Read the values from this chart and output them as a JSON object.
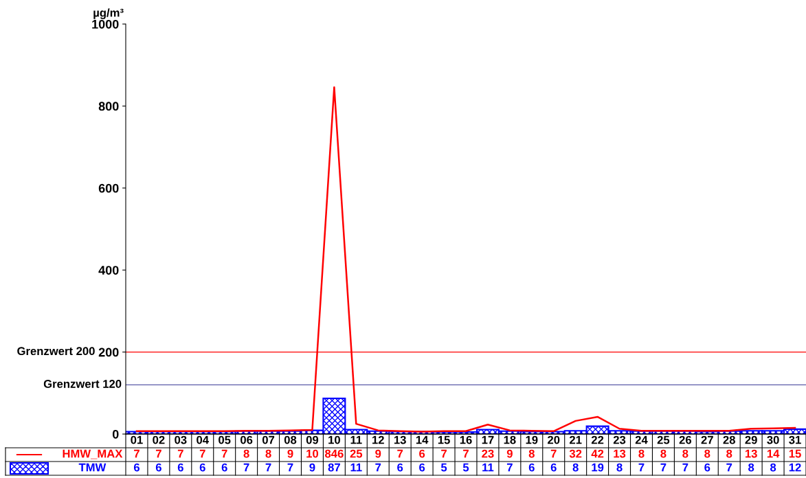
{
  "chart_data": {
    "type": "bar",
    "ylabel": "µg/m³",
    "categories": [
      "01",
      "02",
      "03",
      "04",
      "05",
      "06",
      "07",
      "08",
      "09",
      "10",
      "11",
      "12",
      "13",
      "14",
      "15",
      "16",
      "17",
      "18",
      "19",
      "20",
      "21",
      "22",
      "23",
      "24",
      "25",
      "26",
      "27",
      "28",
      "29",
      "30",
      "31"
    ],
    "series": [
      {
        "name": "HMW_MAX",
        "type": "line",
        "color": "#ff0000",
        "values": [
          7,
          7,
          7,
          7,
          7,
          8,
          8,
          9,
          10,
          846,
          25,
          9,
          7,
          6,
          7,
          7,
          23,
          9,
          8,
          7,
          32,
          42,
          13,
          8,
          8,
          8,
          8,
          8,
          13,
          14,
          15
        ]
      },
      {
        "name": "TMW",
        "color": "#0000ff",
        "values": [
          6,
          6,
          6,
          6,
          6,
          7,
          7,
          7,
          9,
          87,
          11,
          7,
          6,
          6,
          5,
          5,
          11,
          7,
          6,
          6,
          8,
          19,
          8,
          7,
          7,
          7,
          6,
          7,
          8,
          8,
          12
        ]
      }
    ],
    "ylim": [
      0,
      1000
    ],
    "yticks": [
      0,
      200,
      400,
      600,
      800,
      1000
    ],
    "ref_lines": [
      {
        "axis": "y",
        "value": 200,
        "label": "Grenzwert 200",
        "color": "#ff0000"
      },
      {
        "axis": "y",
        "value": 120,
        "label": "Grenzwert 120",
        "color": "#5a5aa8"
      }
    ],
    "data_labels": true,
    "grid": false,
    "legend": "bottom left",
    "marker": "none",
    "line_style": "solid"
  }
}
